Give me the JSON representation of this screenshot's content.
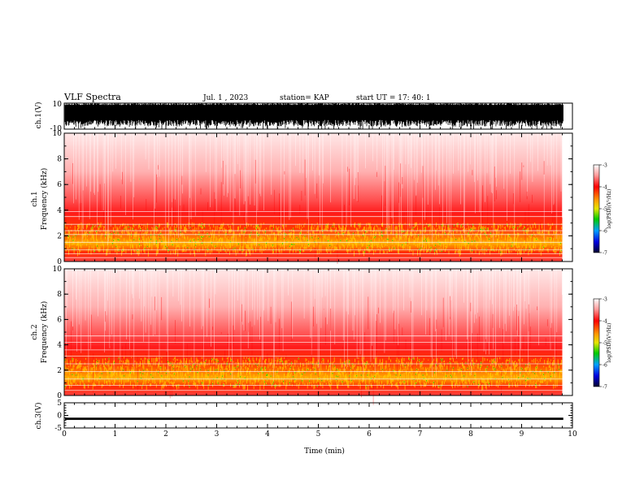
{
  "header": {
    "title": "VLF Spectra",
    "date": "Jul. 1 , 2023",
    "station": "station= KAP",
    "start_ut": "start UT = 17: 40: 1"
  },
  "chart_data": [
    {
      "id": "ch1-waveform",
      "type": "line",
      "ylabel": "ch.1(V)",
      "ylim": [
        -10,
        10
      ],
      "yticks": [
        "10",
        "-10"
      ],
      "xlim": [
        0,
        10
      ],
      "note": "dense waveform saturating between about -4 and +10 V over 0-9.8 min"
    },
    {
      "id": "ch1-spectrogram",
      "type": "heatmap",
      "ylabel": "ch.1 Frequency (kHz)",
      "ylim": [
        0,
        10
      ],
      "yticks": [
        "0",
        "2",
        "4",
        "6",
        "8",
        "10"
      ],
      "xlim": [
        0,
        10
      ],
      "data_end_min": 9.8,
      "colorbar": {
        "label": "log(PSD)(V²/Hz)",
        "range": [
          -7,
          -3
        ],
        "ticks": [
          "-3",
          "-4",
          "-5",
          "-6",
          "-7"
        ]
      },
      "features": {
        "intense_band_khz": [
          0.8,
          3.8
        ],
        "noise_lines_khz": [
          0.3,
          0.6,
          0.9,
          1.5,
          2.1,
          2.4,
          2.9,
          3.5,
          3.9
        ]
      }
    },
    {
      "id": "ch2-spectrogram",
      "type": "heatmap",
      "ylabel": "ch.2 Frequency (kHz)",
      "ylim": [
        0,
        10
      ],
      "yticks": [
        "0",
        "2",
        "4",
        "6",
        "8",
        "10"
      ],
      "xlim": [
        0,
        10
      ],
      "data_end_min": 9.8,
      "colorbar": {
        "label": "log(PSD)(V²/Hz)",
        "range": [
          -7,
          -3
        ],
        "ticks": [
          "-3",
          "-4",
          "-5",
          "-6",
          "-7"
        ]
      },
      "features": {
        "intense_band_khz": [
          0.8,
          3.8
        ],
        "noise_lines_khz": [
          0.4,
          0.8,
          1.3,
          1.9,
          2.5,
          3.1,
          3.6,
          4.2,
          4.7
        ]
      }
    },
    {
      "id": "ch3-waveform",
      "type": "line",
      "ylabel": "ch.3(V)",
      "ylim": [
        -5,
        5
      ],
      "yticks": [
        "5",
        "0",
        "-5"
      ],
      "xlim": [
        0,
        10
      ],
      "xlabel": "Time (min)",
      "xticks": [
        "0",
        "1",
        "2",
        "3",
        "4",
        "5",
        "6",
        "7",
        "8",
        "9",
        "10"
      ],
      "note": "constant narrow band around -1.3 V"
    }
  ],
  "colors": {
    "hot": "#ff0000",
    "warm": "#ffd700",
    "mid": "#00c800",
    "cool": "#0000e0",
    "cold": "#000040"
  }
}
